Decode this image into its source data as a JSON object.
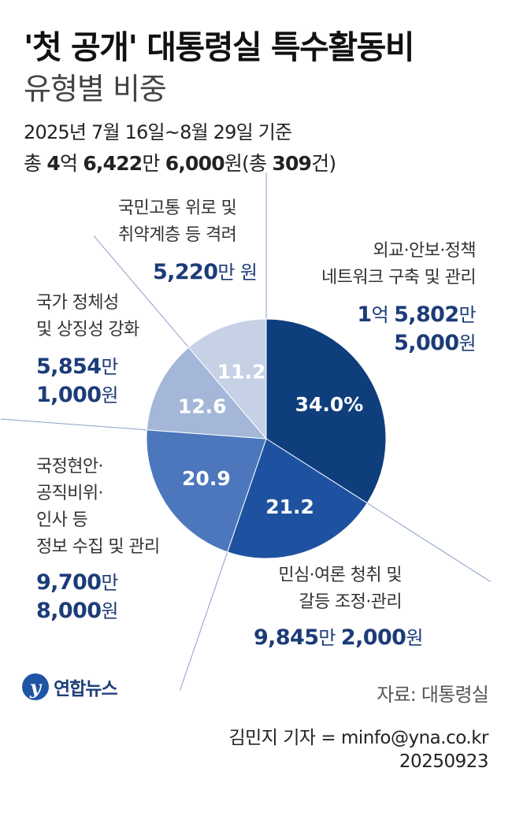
{
  "header": {
    "title": "'첫 공개' 대통령실 특수활동비",
    "subtitle": "유형별 비중",
    "period": "2025년 7월 16일~8월 29일 기준",
    "total": {
      "prefix": "총 ",
      "n1": "4",
      "u1": "억 ",
      "n2": "6,422",
      "u2": "만 ",
      "n3": "6,000",
      "u3": "원(총 ",
      "n4": "309",
      "u4": "건)"
    }
  },
  "chart_data": {
    "type": "pie",
    "title": "'첫 공개' 대통령실 특수활동비",
    "subtitle": "유형별 비중",
    "unit": "%",
    "slices": [
      {
        "label": "외교·안보·정책 네트워크 구축 및 관리",
        "value": 34.0,
        "display": "34.0%",
        "color": "#0f3e7d",
        "amount": "1억 5,802만 5,000원"
      },
      {
        "label": "민심·여론 청취 및 갈등 조정·관리",
        "value": 21.2,
        "display": "21.2",
        "color": "#1e52a0",
        "amount": "9,845만 2,000원"
      },
      {
        "label": "국정현안·공직비위·인사 등 정보 수집 및 관리",
        "value": 20.9,
        "display": "20.9",
        "color": "#4c77bd",
        "amount": "9,700만 8,000원"
      },
      {
        "label": "국가 정체성 및 상징성 강화",
        "value": 12.6,
        "display": "12.6",
        "color": "#a4b7d9",
        "amount": "5,854만 1,000원"
      },
      {
        "label": "국민고통 위로 및 취약계층 등 격려",
        "value": 11.2,
        "display": "11.2",
        "color": "#c6d1e6",
        "amount": "5,220만 원"
      }
    ]
  },
  "labels": {
    "s0": {
      "line1": "외교·안보·정책",
      "line2": "네트워크 구축 및 관리",
      "n1": "1",
      "u1": "억 ",
      "n2": "5,802",
      "u2": "만",
      "n3": "5,000",
      "u3": "원"
    },
    "s1": {
      "line1": "민심·여론 청취 및",
      "line2": "갈등 조정·관리",
      "n1": "9,845",
      "u1": "만 ",
      "n2": "2,000",
      "u2": "원"
    },
    "s2": {
      "line1": "국정현안·",
      "line2": "공직비위·",
      "line3": "인사 등",
      "line4": "정보 수집 및 관리",
      "n1": "9,700",
      "u1": "만",
      "n2": "8,000",
      "u2": "원"
    },
    "s3": {
      "line1": "국가 정체성",
      "line2": "및 상징성 강화",
      "n1": "5,854",
      "u1": "만",
      "n2": "1,000",
      "u2": "원"
    },
    "s4": {
      "line1": "국민고통 위로 및",
      "line2": "취약계층 등 격려",
      "n1": "5,220",
      "u1": "만 원"
    }
  },
  "footer": {
    "logo_mark": "y",
    "logo_text": "연합뉴스",
    "source": "자료: 대통령실",
    "byline": "김민지 기자 = minfo@yna.co.kr",
    "date": "20250923"
  }
}
